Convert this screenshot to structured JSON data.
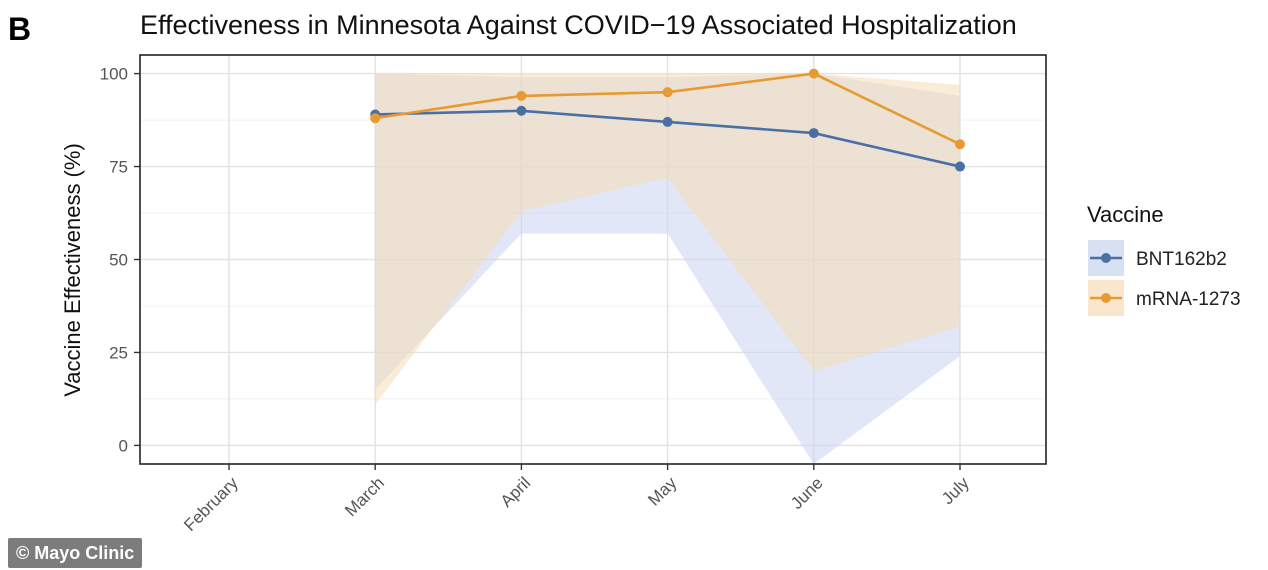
{
  "panel_letter": "B",
  "credit": "© Mayo Clinic",
  "colors": {
    "BNT162b2": "#4a6fa5",
    "mRNA-1273": "#e69a32",
    "BNT162b2_band": "#c8d3f0",
    "mRNA-1273_band": "#f6dcb6"
  },
  "chart_data": {
    "type": "line",
    "title": "Effectiveness in Minnesota Against COVID−19 Associated Hospitalization",
    "xlabel": "",
    "ylabel": "Vaccine Effectiveness (%)",
    "categories": [
      "February",
      "March",
      "April",
      "May",
      "June",
      "July"
    ],
    "ylim": [
      -5,
      105
    ],
    "yticks": [
      0,
      25,
      50,
      75,
      100
    ],
    "grid": true,
    "legend": {
      "title": "Vaccine",
      "position": "right"
    },
    "series": [
      {
        "name": "BNT162b2",
        "values": [
          null,
          89,
          90,
          87,
          84,
          75
        ],
        "lower": [
          null,
          15,
          57,
          57,
          -5,
          24
        ],
        "upper": [
          null,
          100,
          99,
          99,
          100,
          94
        ]
      },
      {
        "name": "mRNA-1273",
        "values": [
          null,
          88,
          94,
          95,
          100,
          81
        ],
        "lower": [
          null,
          11,
          63,
          72,
          20,
          32
        ],
        "upper": [
          null,
          100,
          100,
          100,
          100,
          97
        ]
      }
    ]
  }
}
